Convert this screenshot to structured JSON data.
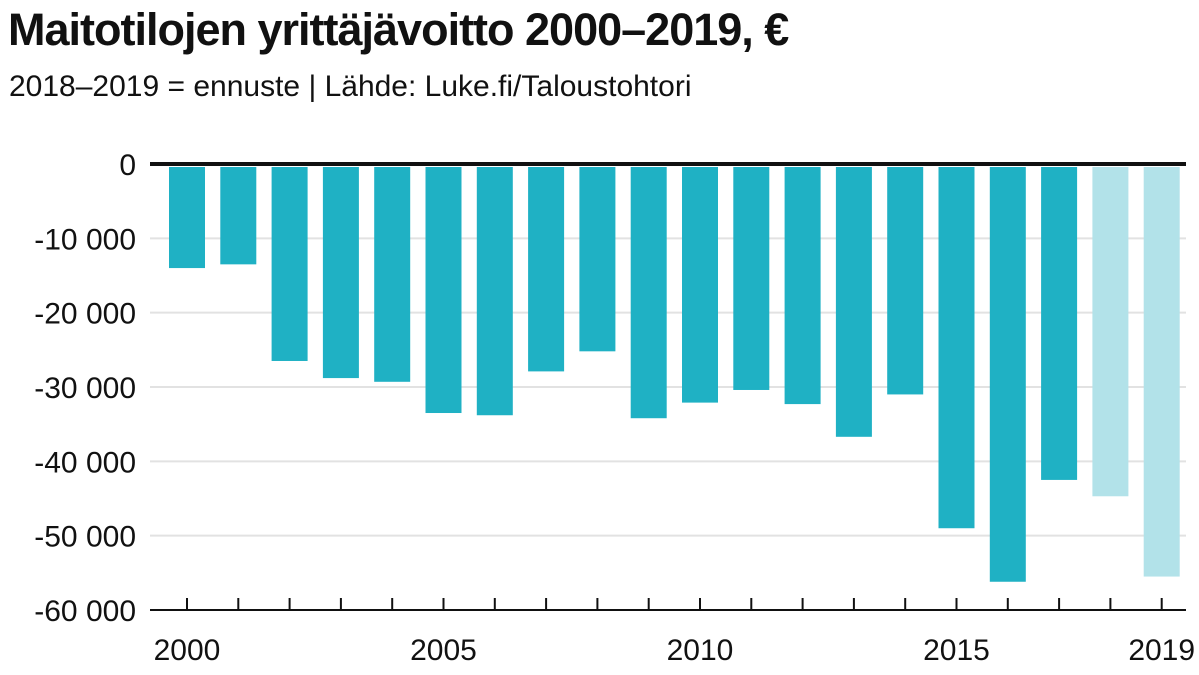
{
  "title": "Maitotilojen yrittäjävoitto 2000–2019, €",
  "subtitle": "2018–2019 = ennuste | Lähde: Luke.fi/Taloustohtori",
  "colors": {
    "actual": "#1fb1c4",
    "forecast": "#b2e2e9",
    "grid": "#e2e2e2",
    "axis": "#111111"
  },
  "chart_data": {
    "type": "bar",
    "title": "Maitotilojen yrittäjävoitto 2000–2019, €",
    "subtitle": "2018–2019 = ennuste | Lähde: Luke.fi/Taloustohtori",
    "xlabel": "",
    "ylabel": "",
    "categories": [
      "2000",
      "2001",
      "2002",
      "2003",
      "2004",
      "2005",
      "2006",
      "2007",
      "2008",
      "2009",
      "2010",
      "2011",
      "2012",
      "2013",
      "2014",
      "2015",
      "2016",
      "2017",
      "2018",
      "2019"
    ],
    "values": [
      -14000,
      -13500,
      -26500,
      -28800,
      -29300,
      -33500,
      -33800,
      -27900,
      -25200,
      -34200,
      -32100,
      -30400,
      -32300,
      -36700,
      -31000,
      -49000,
      -56200,
      -42500,
      -44700,
      -55500
    ],
    "forecast": [
      false,
      false,
      false,
      false,
      false,
      false,
      false,
      false,
      false,
      false,
      false,
      false,
      false,
      false,
      false,
      false,
      false,
      false,
      true,
      true
    ],
    "ylim": [
      -60000,
      0
    ],
    "yticks": [
      0,
      -10000,
      -20000,
      -30000,
      -40000,
      -50000,
      -60000
    ],
    "ytick_labels": [
      "0",
      "-10 000",
      "-20 000",
      "-30 000",
      "-40 000",
      "-50 000",
      "-60 000"
    ],
    "xtick_labels": [
      "2000",
      "2005",
      "2010",
      "2015",
      "2019"
    ],
    "grid": true,
    "legend": "none"
  }
}
